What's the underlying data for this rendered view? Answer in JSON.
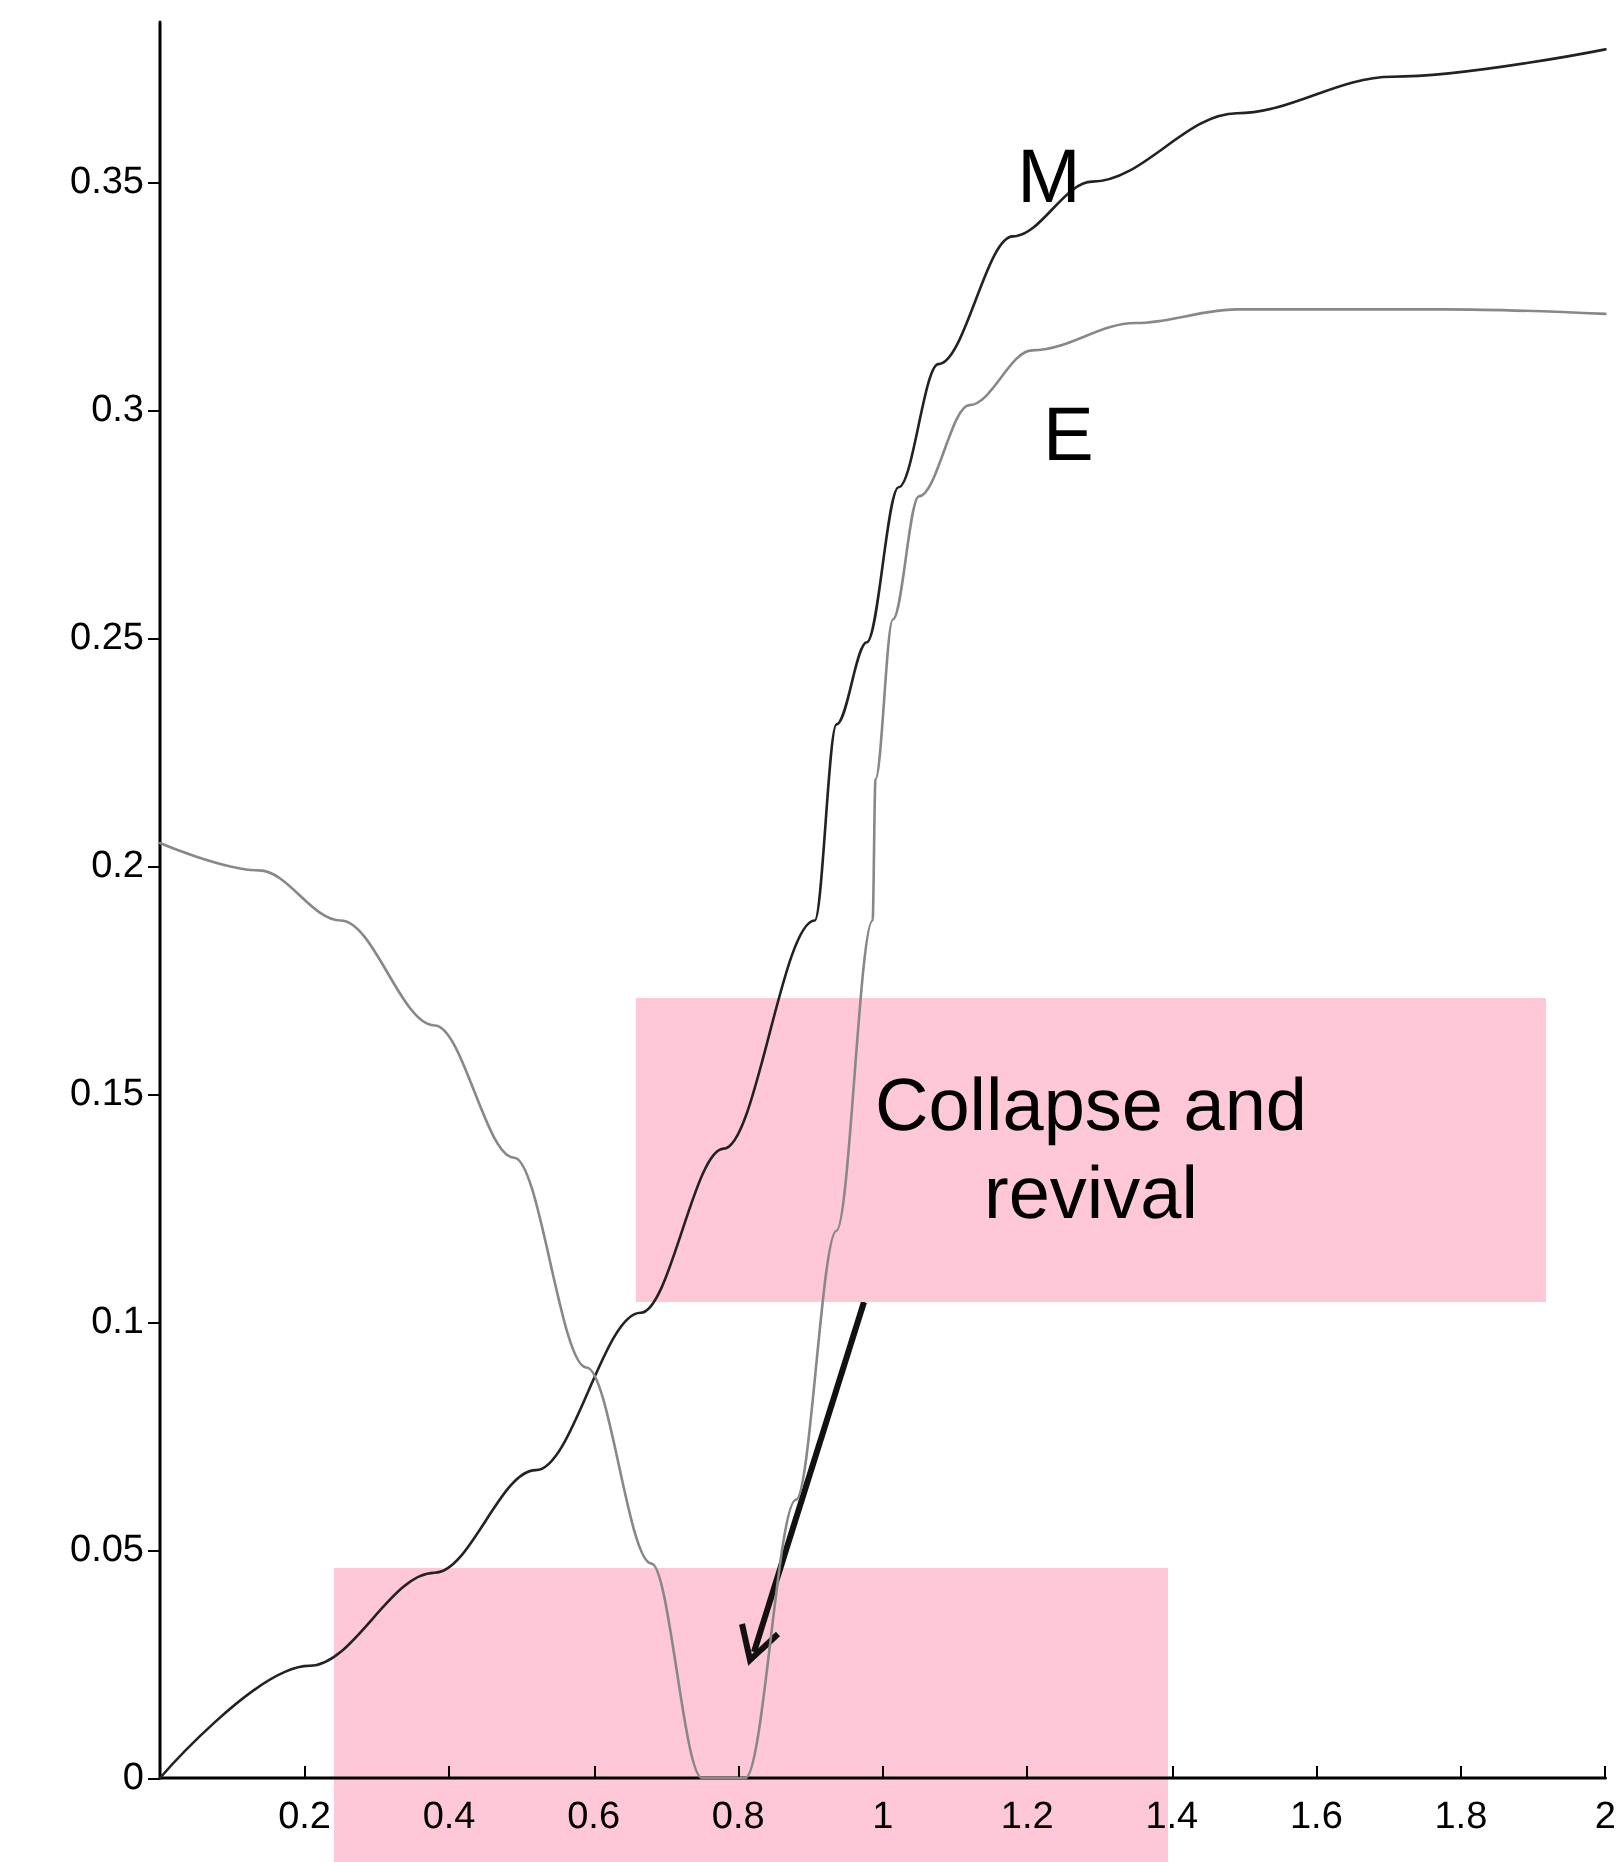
{
  "chart_data": {
    "type": "line",
    "xlim": [
      0,
      2
    ],
    "xticks": [
      0.2,
      0.4,
      0.6,
      0.8,
      1,
      1.2,
      1.4,
      1.6,
      1.8,
      2
    ],
    "ylim": [
      0,
      0.385
    ],
    "yticks": [
      0,
      0.05,
      0.1,
      0.15,
      0.2,
      0.25,
      0.3,
      0.35
    ],
    "grid": false,
    "legend": false,
    "marker": "none",
    "line_style": "solid",
    "series": [
      {
        "name": "M",
        "color": "#222222",
        "x": [
          0,
          0.207,
          0.38,
          0.52,
          0.665,
          0.78,
          0.906,
          0.936,
          0.978,
          1.022,
          1.077,
          1.18,
          1.29,
          1.49,
          1.705,
          2.0
        ],
        "values": [
          0,
          0.0246,
          0.045,
          0.0675,
          0.102,
          0.138,
          0.188,
          0.231,
          0.249,
          0.283,
          0.31,
          0.338,
          0.35,
          0.365,
          0.373,
          0.379
        ]
      },
      {
        "name": "E",
        "color": "#888888",
        "x": [
          0,
          0.137,
          0.25,
          0.38,
          0.49,
          0.59,
          0.68,
          0.75,
          0.81,
          0.88,
          0.936,
          0.986,
          0.99,
          1.014,
          1.05,
          1.12,
          1.207,
          1.35,
          1.49,
          1.78,
          2.0
        ],
        "values": [
          0.205,
          0.199,
          0.188,
          0.165,
          0.136,
          0.09,
          0.047,
          0,
          0,
          0.061,
          0.12,
          0.188,
          0.219,
          0.254,
          0.281,
          0.301,
          0.313,
          0.319,
          0.322,
          0.322,
          0.321
        ]
      }
    ],
    "annotations": [
      "Collapse and revival"
    ]
  }
}
